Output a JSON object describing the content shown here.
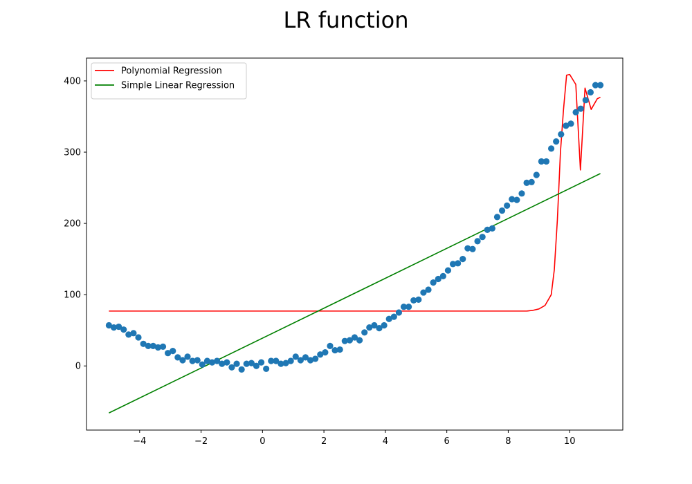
{
  "chart_data": {
    "type": "scatter",
    "title": "LR function",
    "xlabel": "",
    "ylabel": "",
    "xlim": [
      -5.73,
      11.73
    ],
    "ylim": [
      -90,
      432
    ],
    "x_ticks": [
      -4,
      -2,
      0,
      2,
      4,
      6,
      8,
      10
    ],
    "y_ticks": [
      0,
      100,
      200,
      300,
      400
    ],
    "grid": false,
    "legend_position": "top-left",
    "series": [
      {
        "name": "Polynomial Regression",
        "kind": "line",
        "color": "#ff0000",
        "x": [
          -5,
          8.6,
          8.8,
          9.0,
          9.2,
          9.4,
          9.5,
          9.6,
          9.7,
          9.8,
          9.9,
          10.0,
          10.2,
          10.35,
          10.5,
          10.7,
          10.9,
          11.0
        ],
        "y": [
          77,
          77,
          78,
          80,
          85,
          100,
          135,
          205,
          300,
          360,
          408,
          409,
          395,
          275,
          390,
          360,
          375,
          377
        ]
      },
      {
        "name": "Simple Linear Regression",
        "kind": "line",
        "color": "#008000",
        "x": [
          -5,
          11
        ],
        "y": [
          -66,
          270
        ]
      },
      {
        "kind": "scatter",
        "color": "#1f77b4",
        "x": [
          -5.0,
          -4.84,
          -4.68,
          -4.52,
          -4.36,
          -4.2,
          -4.04,
          -3.88,
          -3.72,
          -3.56,
          -3.4,
          -3.24,
          -3.08,
          -2.92,
          -2.76,
          -2.6,
          -2.44,
          -2.28,
          -2.12,
          -1.96,
          -1.8,
          -1.64,
          -1.48,
          -1.32,
          -1.16,
          -1.0,
          -0.84,
          -0.68,
          -0.52,
          -0.36,
          -0.2,
          -0.04,
          0.12,
          0.28,
          0.44,
          0.6,
          0.76,
          0.92,
          1.08,
          1.24,
          1.4,
          1.56,
          1.72,
          1.88,
          2.04,
          2.2,
          2.36,
          2.52,
          2.68,
          2.84,
          3.0,
          3.16,
          3.32,
          3.48,
          3.64,
          3.8,
          3.96,
          4.12,
          4.28,
          4.44,
          4.6,
          4.76,
          4.92,
          5.08,
          5.24,
          5.4,
          5.56,
          5.72,
          5.88,
          6.04,
          6.2,
          6.36,
          6.52,
          6.68,
          6.84,
          7.0,
          7.16,
          7.32,
          7.48,
          7.64,
          7.8,
          7.96,
          8.12,
          8.28,
          8.44,
          8.6,
          8.76,
          8.92,
          9.08,
          9.24,
          9.4,
          9.56,
          9.72,
          9.88,
          10.04,
          10.2,
          10.36,
          10.52,
          10.68,
          10.84,
          11.0
        ],
        "y": [
          57,
          54,
          55,
          51,
          44,
          46,
          40,
          31,
          28,
          28,
          26,
          27,
          18,
          21,
          12,
          8,
          13,
          7,
          8,
          2,
          7,
          5,
          7,
          3,
          5,
          -2,
          3,
          -5,
          3,
          4,
          0,
          5,
          -4,
          7,
          7,
          3,
          4,
          7,
          13,
          8,
          12,
          8,
          10,
          16,
          19,
          28,
          22,
          23,
          35,
          36,
          40,
          36,
          47,
          54,
          57,
          53,
          57,
          66,
          69,
          75,
          83,
          83,
          92,
          93,
          103,
          107,
          117,
          122,
          126,
          134,
          143,
          144,
          150,
          165,
          164,
          175,
          181,
          191,
          193,
          209,
          218,
          225,
          234,
          233,
          242,
          257,
          258,
          268,
          287,
          287,
          305,
          315,
          325,
          337,
          340,
          356,
          361,
          373,
          384,
          394,
          394
        ]
      }
    ]
  }
}
